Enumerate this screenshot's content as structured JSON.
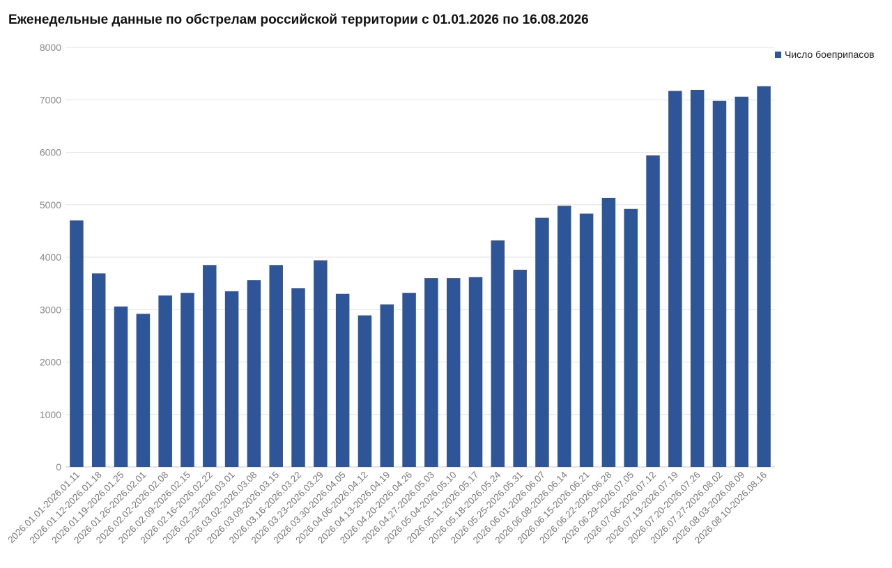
{
  "chart_data": {
    "type": "bar",
    "title": "Еженедельные данные по обстрелам российской территории с 01.01.2026 по 16.08.2026",
    "xlabel": "",
    "ylabel": "",
    "ylim": [
      0,
      8000
    ],
    "yticks": [
      0,
      1000,
      2000,
      3000,
      4000,
      5000,
      6000,
      7000,
      8000
    ],
    "grid": true,
    "legend_position": "top-right",
    "bar_color": "#2e5597",
    "categories": [
      "2026.01.01-2026.01.11",
      "2026.01.12-2026.01.18",
      "2026.01.19-2026.01.25",
      "2026.01.26-2026.02.01",
      "2026.02.02-2026.02.08",
      "2026.02.09-2026.02.15",
      "2026.02.16-2026.02.22",
      "2026.02.23-2026.03.01",
      "2026.03.02-2026.03.08",
      "2026.03.09-2026.03.15",
      "2026.03.16-2026.03.22",
      "2026.03.23-2026.03.29",
      "2026.03.30-2026.04.05",
      "2026.04.06-2026.04.12",
      "2026.04.13-2026.04.19",
      "2026.04.20-2026.04.26",
      "2026.04.27-2026.05.03",
      "2026.05.04-2026.05.10",
      "2026.05.11-2026.05.17",
      "2026.05.18-2026.05.24",
      "2026.05.25-2026.05.31",
      "2026.06.01-2026.06.07",
      "2026.06.08-2026.06.14",
      "2026.06.15-2026.06.21",
      "2026.06.22-2026.06.28",
      "2026.06.29-2026.07.05",
      "2026.07.06-2026.07.12",
      "2026.07.13-2026.07.19",
      "2026.07.20-2026.07.26",
      "2026.07.27-2026.08.02",
      "2026.08.03-2026.08.09",
      "2026.08.10-2026.08.16"
    ],
    "series": [
      {
        "name": "Число боеприпасов",
        "values": [
          4700,
          3690,
          3060,
          2920,
          3270,
          3320,
          3850,
          3350,
          3560,
          3850,
          3410,
          3940,
          3300,
          2890,
          3100,
          3320,
          3600,
          3600,
          3620,
          4320,
          3760,
          4750,
          4980,
          4830,
          5130,
          4920,
          5940,
          7170,
          7190,
          6980,
          7060,
          7260
        ]
      }
    ]
  }
}
